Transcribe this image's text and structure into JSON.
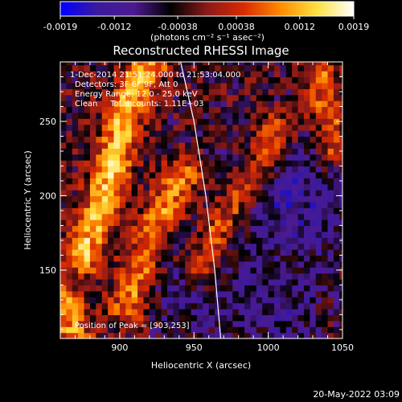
{
  "chart_data": {
    "type": "heatmap",
    "title": "Reconstructed RHESSI Image",
    "xlabel": "Heliocentric X (arcsec)",
    "ylabel": "Heliocentric Y (arcsec)",
    "xlim": [
      860,
      1050
    ],
    "ylim": [
      104,
      290
    ],
    "x_ticks": [
      900,
      950,
      1000,
      1050
    ],
    "x_tick_labels": [
      "900",
      "950",
      "1000",
      "1050"
    ],
    "y_ticks": [
      150,
      200,
      250
    ],
    "y_tick_labels": [
      "150",
      "200",
      "250"
    ],
    "colorbar": {
      "min": -0.0019,
      "max": 0.0019,
      "ticks": [
        -0.0019,
        -0.0012,
        -0.00038,
        0.00038,
        0.0012,
        0.0019
      ],
      "tick_labels": [
        "-0.0019",
        "-0.0012",
        "-0.00038",
        "0.00038",
        "0.0012",
        "0.0019"
      ],
      "unit_label": "(photons cm⁻² s⁻¹ asec⁻²)",
      "colormap": [
        "#0000ff",
        "#3a1a9e",
        "#4c1a90",
        "#000000",
        "#8a1a1a",
        "#d82a00",
        "#ff8a00",
        "#ffe040",
        "#ffffff"
      ]
    },
    "annotations": [
      "1-Dec-2014 21:51:24.000 to 21:53:04.000",
      "Detectors: 3F 6F 9F, Att 0",
      "Energy Range: 12.0 - 25.0 keV",
      "Clean     Total counts: 1.11E+03",
      "Position of Peak = [903,253]"
    ],
    "peak": {
      "x": 903,
      "y": 253
    },
    "limb": [
      [
        941,
        290
      ],
      [
        950,
        250
      ],
      [
        958,
        200
      ],
      [
        964,
        150
      ],
      [
        968,
        104
      ]
    ],
    "bright_ridges": [
      {
        "points": [
          [
            875,
            160
          ],
          [
            885,
            185
          ],
          [
            895,
            220
          ],
          [
            903,
            253
          ],
          [
            912,
            275
          ],
          [
            920,
            290
          ]
        ],
        "value": 0.0016
      },
      {
        "points": [
          [
            905,
            125
          ],
          [
            915,
            155
          ],
          [
            925,
            180
          ],
          [
            935,
            200
          ],
          [
            943,
            215
          ]
        ],
        "value": 0.0013
      },
      {
        "points": [
          [
            955,
            150
          ],
          [
            965,
            175
          ],
          [
            980,
            200
          ],
          [
            995,
            222
          ],
          [
            1005,
            245
          ]
        ],
        "value": 0.0012
      },
      {
        "points": [
          [
            1035,
            280
          ],
          [
            1040,
            255
          ],
          [
            1045,
            230
          ]
        ],
        "value": 0.0011
      },
      {
        "points": [
          [
            862,
            130
          ],
          [
            866,
            115
          ],
          [
            870,
            104
          ]
        ],
        "value": 0.0013
      }
    ],
    "dark_regions": [
      {
        "center": [
          1015,
          200
        ],
        "radius": 35,
        "value": -0.0008
      },
      {
        "center": [
          950,
          135
        ],
        "radius": 25,
        "value": -0.0006
      },
      {
        "center": [
          1010,
          120
        ],
        "radius": 20,
        "value": -0.0005
      }
    ]
  },
  "footer": {
    "timestamp": "20-May-2022 03:09"
  }
}
